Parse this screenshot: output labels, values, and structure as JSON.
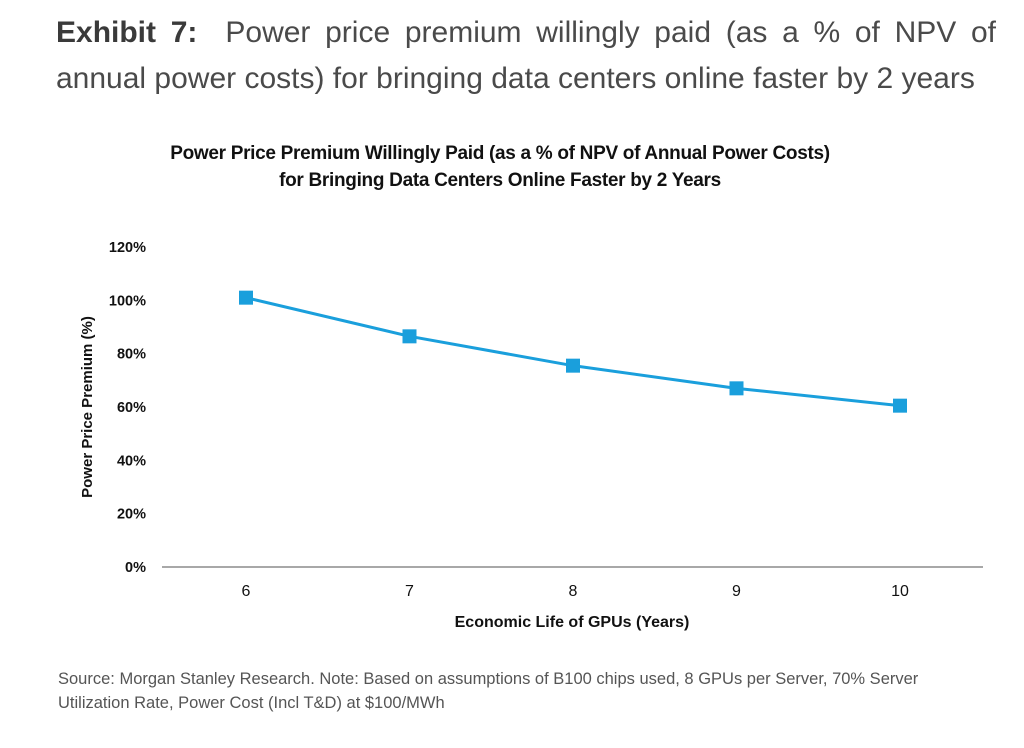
{
  "exhibit": {
    "label": "Exhibit 7:",
    "title": "Power price premium willingly paid (as a % of NPV of annual power costs) for bringing data centers online faster by 2 years"
  },
  "chart_data": {
    "type": "line",
    "title": "Power Price Premium Willingly Paid (as a % of NPV of Annual Power Costs) for Bringing Data Centers Online Faster by 2 Years",
    "xlabel": "Economic Life of GPUs (Years)",
    "ylabel": "Power Price Premium (%)",
    "categories": [
      "6",
      "7",
      "8",
      "9",
      "10"
    ],
    "series": [
      {
        "values": [
          101,
          86.5,
          75.5,
          67,
          60.5
        ],
        "color": "#1a9fdc"
      }
    ],
    "ylim": [
      0,
      120
    ],
    "yticks": [
      0,
      20,
      40,
      60,
      80,
      100,
      120
    ],
    "ytick_labels": [
      "0%",
      "20%",
      "40%",
      "60%",
      "80%",
      "100%",
      "120%"
    ],
    "grid": false,
    "marker": "square"
  },
  "source_note": "Source: Morgan Stanley Research. Note: Based on assumptions of B100 chips used, 8 GPUs per Server, 70% Server Utilization Rate, Power Cost (Incl T&D) at $100/MWh"
}
